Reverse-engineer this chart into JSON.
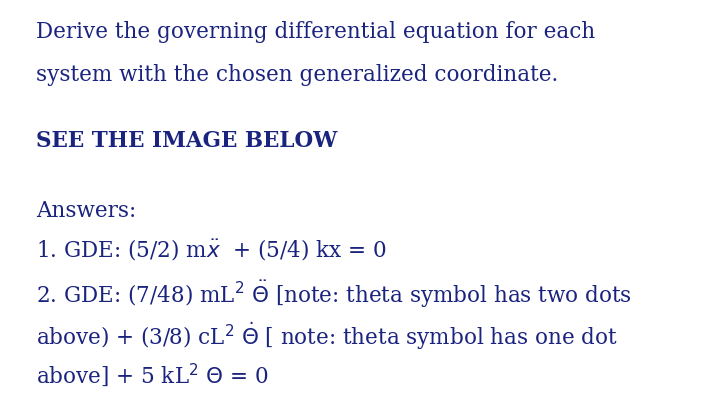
{
  "background_color": "#ffffff",
  "font_color": "#1a237e",
  "figsize": [
    7.2,
    4.13
  ],
  "dpi": 100,
  "line1": "Derive the governing differential equation for each",
  "line2": "system with the chosen generalized coordinate.",
  "line3": "SEE THE IMAGE BELOW",
  "line4": "Answers:",
  "fontsize": 15.5,
  "font_family": "DejaVu Serif"
}
